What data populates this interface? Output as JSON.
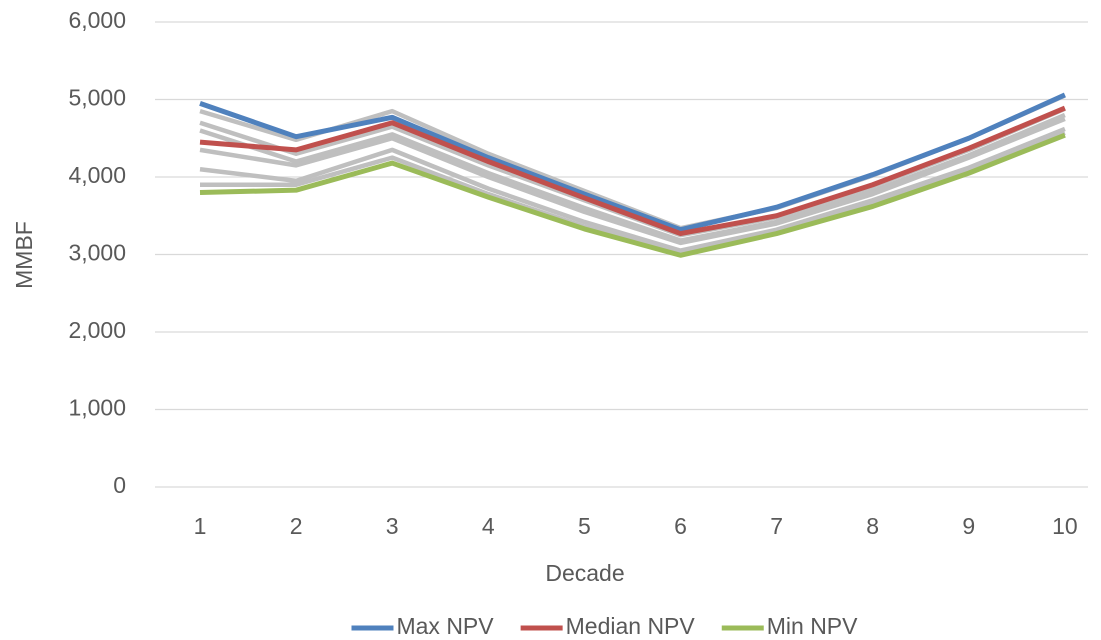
{
  "chart_data": {
    "type": "line",
    "x_label": "Decade",
    "y_label": "MMBF",
    "categories": [
      "1",
      "2",
      "3",
      "4",
      "5",
      "6",
      "7",
      "8",
      "9",
      "10"
    ],
    "series": [
      {
        "color": "#bfbfbf",
        "values": [
          4850,
          4480,
          4850,
          4300,
          3820,
          3340,
          3600,
          4020,
          4500,
          5050
        ]
      },
      {
        "color": "#bfbfbf",
        "values": [
          4700,
          4300,
          4650,
          4150,
          3700,
          3250,
          3480,
          3880,
          4350,
          4880
        ]
      },
      {
        "color": "#bfbfbf",
        "values": [
          4600,
          4200,
          4550,
          4050,
          3600,
          3180,
          3420,
          3820,
          4280,
          4800
        ]
      },
      {
        "color": "#bfbfbf",
        "values": [
          4350,
          4150,
          4500,
          4000,
          3550,
          3150,
          3400,
          3780,
          4250,
          4750
        ]
      },
      {
        "color": "#bfbfbf",
        "values": [
          4100,
          3950,
          4350,
          3850,
          3420,
          3050,
          3320,
          3700,
          4120,
          4620
        ]
      },
      {
        "color": "#bfbfbf",
        "values": [
          3900,
          3900,
          4250,
          3780,
          3360,
          3010,
          3290,
          3650,
          4080,
          4570
        ]
      },
      {
        "name": "Max NPV",
        "color": "#4f81bd",
        "values": [
          4950,
          4520,
          4770,
          4250,
          3780,
          3320,
          3610,
          4030,
          4500,
          5060
        ]
      },
      {
        "name": "Median NPV",
        "color": "#c0504d",
        "values": [
          4450,
          4350,
          4700,
          4200,
          3730,
          3270,
          3500,
          3900,
          4370,
          4890
        ]
      },
      {
        "name": "Min NPV",
        "color": "#9bbb59",
        "values": [
          3800,
          3830,
          4180,
          3740,
          3330,
          2990,
          3270,
          3620,
          4050,
          4540
        ]
      }
    ],
    "ylim": [
      0,
      6000
    ],
    "yticks": [
      0,
      {
        "value": 1000,
        "label": "1,000"
      },
      {
        "value": 2000,
        "label": "2,000"
      },
      {
        "value": 3000,
        "label": "3,000"
      },
      {
        "value": 4000,
        "label": "4,000"
      },
      {
        "value": 5000,
        "label": "5,000"
      },
      {
        "value": 6000,
        "label": "6,000"
      }
    ],
    "grid": true,
    "legend": "bottom"
  }
}
